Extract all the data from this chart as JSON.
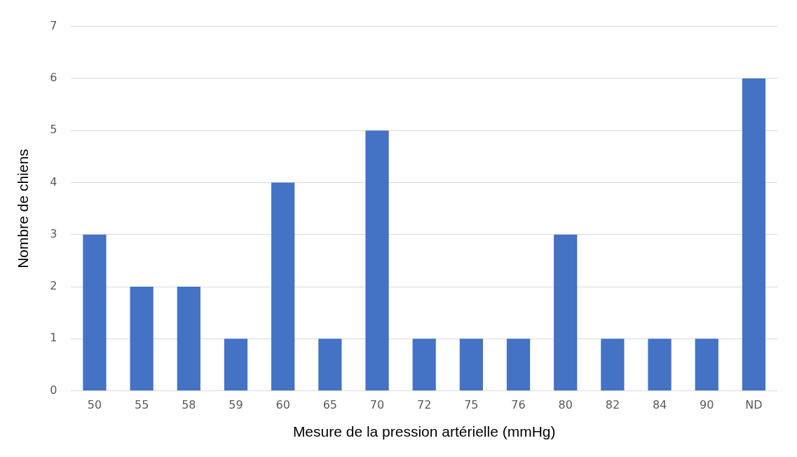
{
  "chart_data": {
    "type": "bar",
    "xlabel": "Mesure de la pression artérielle (mmHg)",
    "ylabel": "Nombre de chiens",
    "categories": [
      "50",
      "55",
      "58",
      "59",
      "60",
      "65",
      "70",
      "72",
      "75",
      "76",
      "80",
      "82",
      "84",
      "90",
      "ND"
    ],
    "values": [
      3,
      2,
      2,
      1,
      4,
      1,
      5,
      1,
      1,
      1,
      3,
      1,
      1,
      1,
      6
    ],
    "color": "#4472c4",
    "ylim": [
      0,
      7
    ],
    "yticks": [
      0,
      1,
      2,
      3,
      4,
      5,
      6,
      7
    ],
    "grid": "y",
    "legend": false
  }
}
